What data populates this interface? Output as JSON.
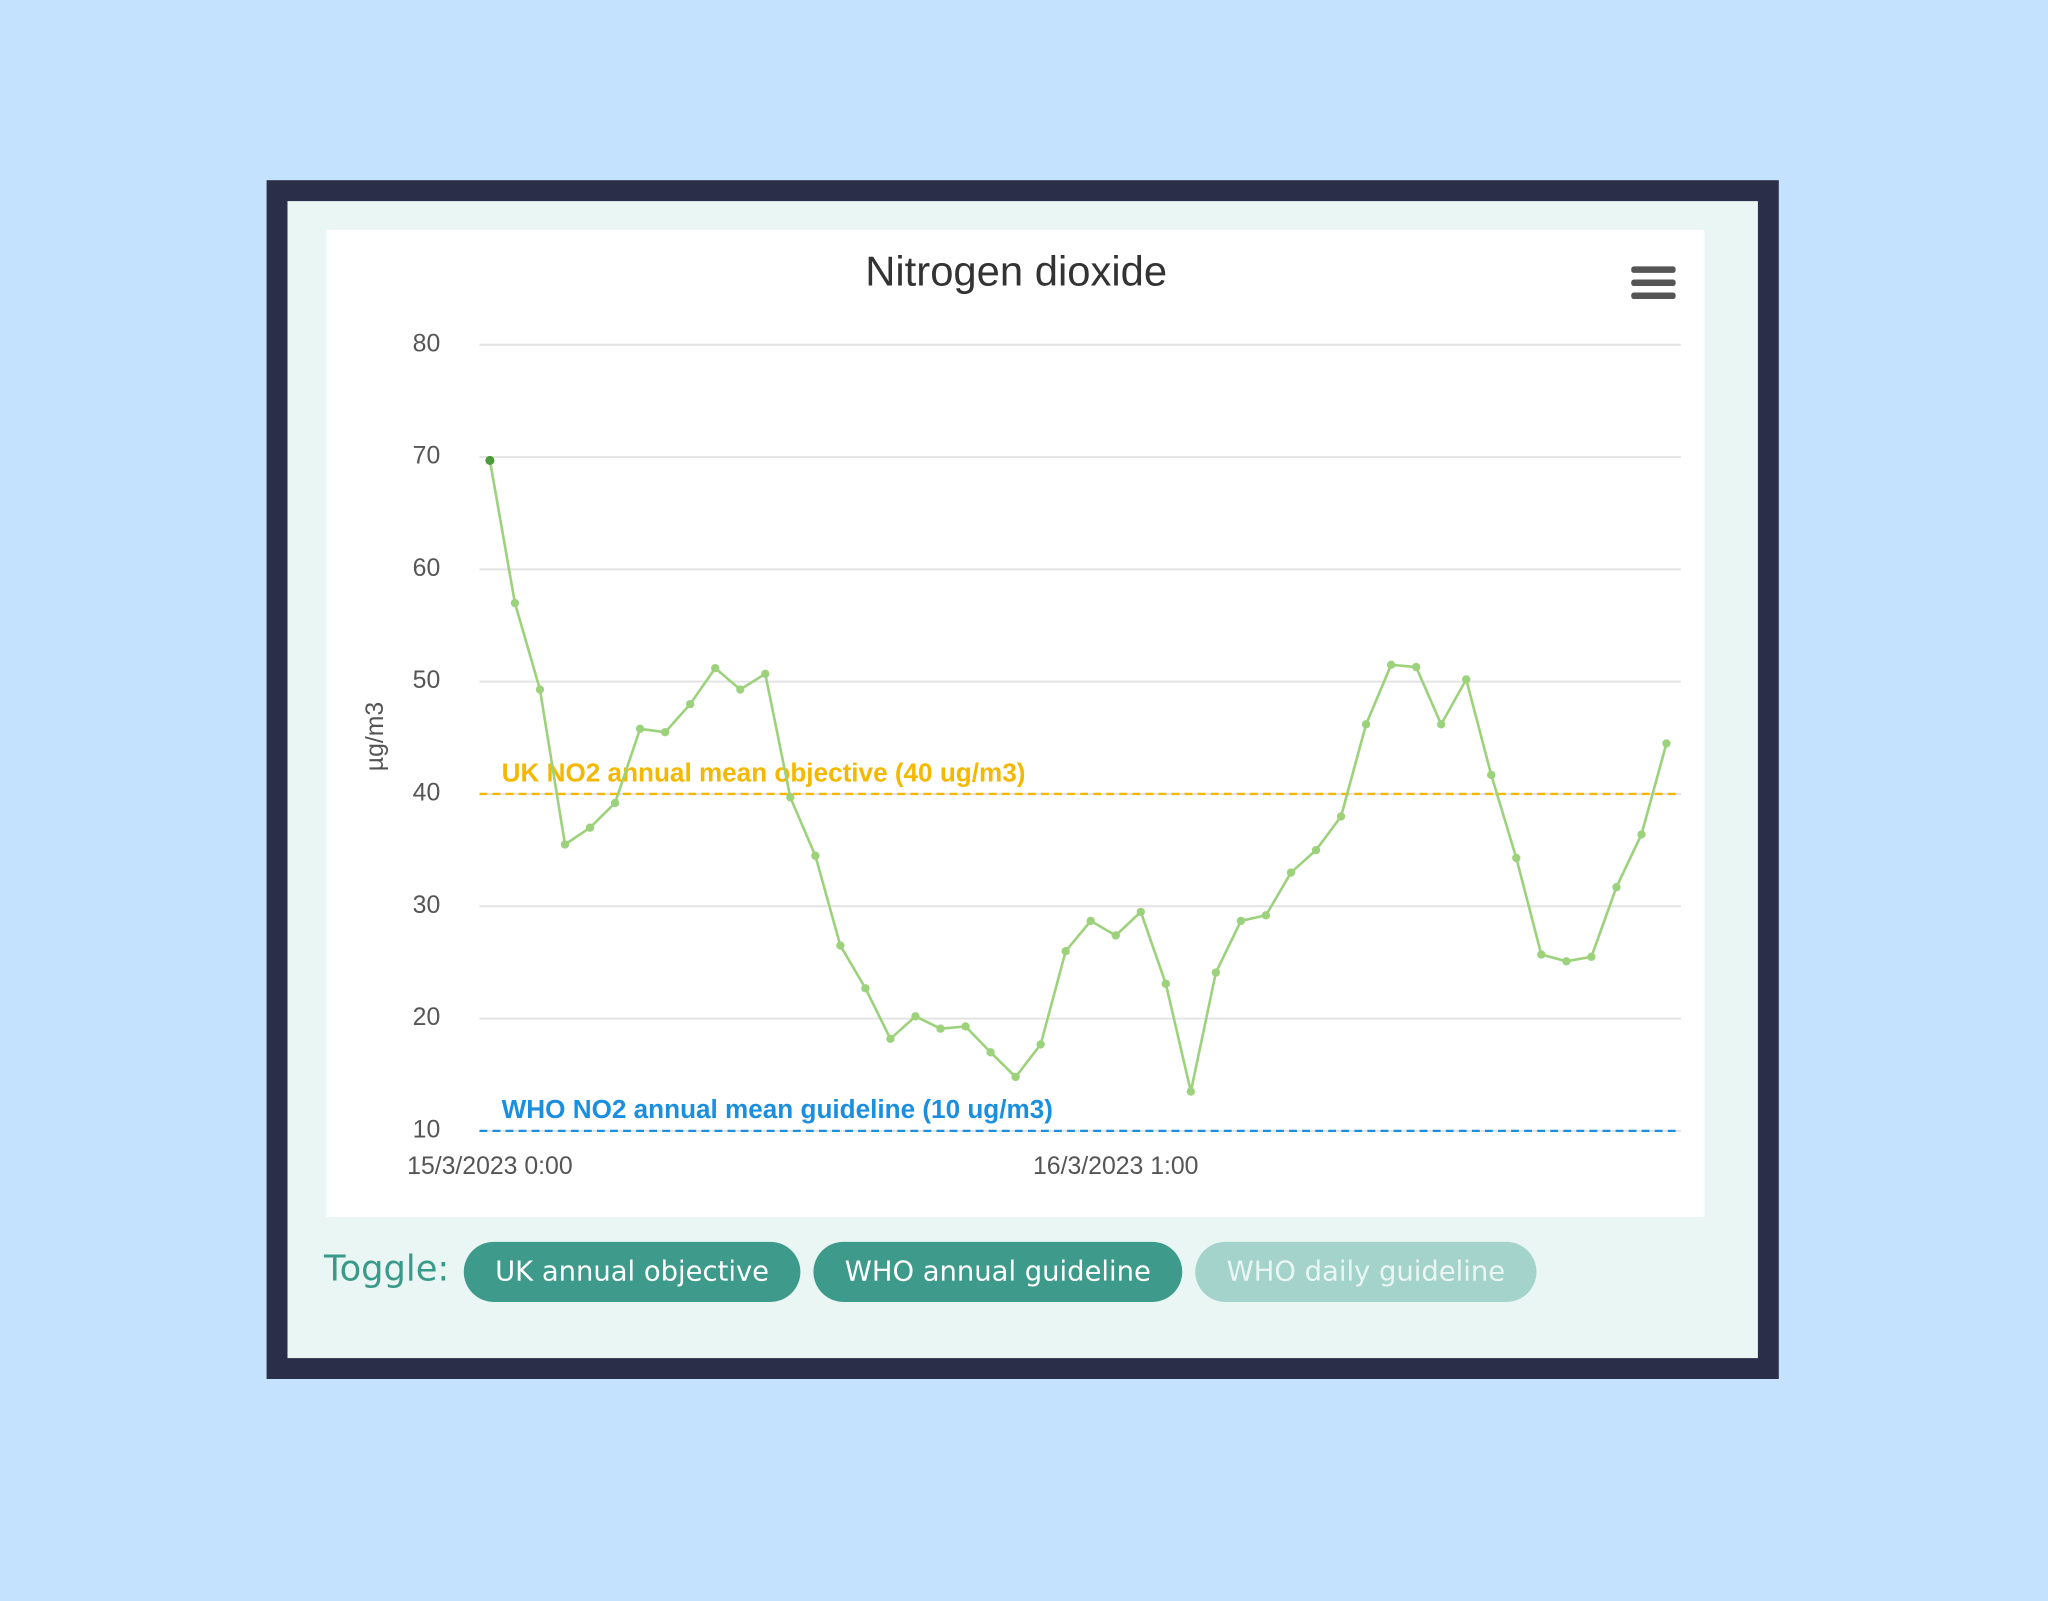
{
  "chart_data": {
    "type": "line",
    "title": "Nitrogen dioxide",
    "ylabel": "µg/m3",
    "categories": [
      "15/3/2023 0:00",
      null,
      null,
      null,
      null,
      null,
      null,
      null,
      null,
      null,
      null,
      null,
      null,
      null,
      null,
      null,
      null,
      null,
      null,
      null,
      null,
      null,
      null,
      null,
      null,
      "16/3/2023 1:00",
      null,
      null,
      null,
      null,
      null,
      null,
      null,
      null,
      null,
      null,
      null,
      null,
      null,
      null,
      null,
      null,
      null,
      null,
      null,
      null,
      null,
      null
    ],
    "series": [
      {
        "name": "Nitrogen dioxide",
        "color": "#9dd27c",
        "values": [
          69.7,
          57,
          49.3,
          35.5,
          37,
          39.2,
          45.8,
          45.5,
          48,
          51.2,
          49.3,
          50.7,
          39.7,
          34.5,
          26.5,
          22.7,
          18.2,
          20.2,
          19.1,
          19.3,
          17,
          14.8,
          17.7,
          26,
          28.7,
          27.4,
          29.5,
          23.1,
          13.5,
          24.1,
          28.7,
          29.2,
          33,
          35,
          38,
          46.2,
          51.5,
          51.3,
          46.2,
          50.2,
          41.7,
          34.3,
          25.7,
          25.1,
          25.5,
          31.7,
          36.4,
          44.5
        ]
      }
    ],
    "ylim": [
      10,
      80
    ],
    "yticks": [
      10,
      20,
      30,
      40,
      50,
      60,
      70,
      80
    ],
    "grid": true,
    "plot_lines": [
      {
        "value": 40,
        "label": "UK NO2 annual mean objective (40 ug/m3)",
        "color": "#f5b800"
      },
      {
        "value": 10,
        "label": "WHO NO2 annual mean guideline (10 ug/m3)",
        "color": "#1a8fe0"
      }
    ]
  },
  "toggle": {
    "label": "Toggle:",
    "buttons": [
      {
        "label": "UK annual objective",
        "active": true
      },
      {
        "label": "WHO annual guideline",
        "active": true
      },
      {
        "label": "WHO daily guideline",
        "active": false
      }
    ]
  }
}
